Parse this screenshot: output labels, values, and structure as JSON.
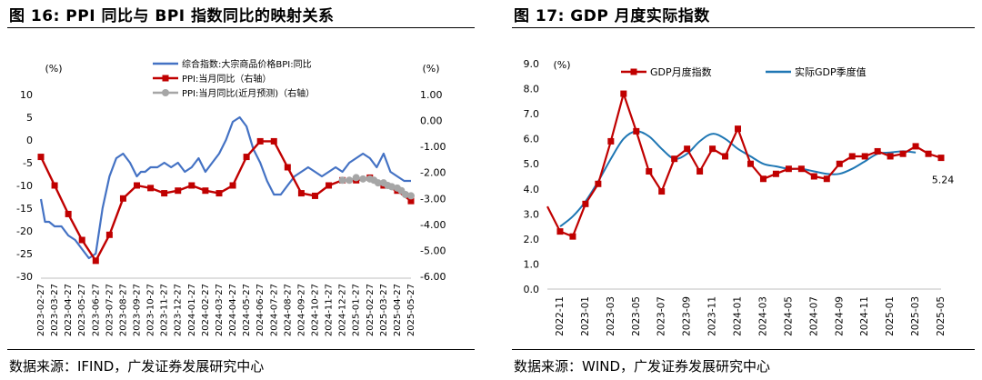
{
  "left": {
    "title": "图 16:  PPI 同比与 BPI 指数同比的映射关系",
    "source": "数据来源：IFIND，广发证券发展研究中心"
  },
  "right": {
    "title": "图 17:  GDP 月度实际指数",
    "source": "数据来源：WIND，广发证券发展研究中心"
  },
  "chart_data": [
    {
      "type": "line",
      "title": "",
      "ylabel": "(%)",
      "y2label": "(%)",
      "ylim": [
        -30,
        10
      ],
      "y2lim": [
        -6,
        1
      ],
      "yticks": [
        10,
        5,
        0,
        -5,
        -10,
        -15,
        -20,
        -25,
        -30
      ],
      "y2ticks": [
        "1.00",
        "0.00",
        "-1.00",
        "-2.00",
        "-3.00",
        "-4.00",
        "-5.00",
        "-6.00"
      ],
      "xlabels": [
        "2023-02-27",
        "2023-03-27",
        "2023-04-27",
        "2023-05-27",
        "2023-06-27",
        "2023-07-27",
        "2023-08-27",
        "2023-09-27",
        "2023-10-27",
        "2023-11-27",
        "2023-12-27",
        "2024-01-27",
        "2024-02-27",
        "2024-03-27",
        "2024-04-27",
        "2024-05-27",
        "2024-06-27",
        "2024-07-27",
        "2024-08-27",
        "2024-09-27",
        "2024-10-27",
        "2024-11-27",
        "2024-12-27",
        "2025-01-27",
        "2025-02-27",
        "2025-03-27",
        "2025-04-27",
        "2025-05-27"
      ],
      "grid": false,
      "legend_position": "top",
      "series": [
        {
          "name": "综合指数:大宗商品价格BPI:同比",
          "axis": "left",
          "color": "#4472c4",
          "x": [
            0,
            0.3,
            0.6,
            1,
            1.5,
            2,
            2.5,
            3,
            3.5,
            4,
            4.5,
            5,
            5.5,
            6,
            6.5,
            7,
            7.3,
            7.6,
            8,
            8.5,
            9,
            9.5,
            10,
            10.5,
            11,
            11.5,
            12,
            12.5,
            13,
            13.5,
            14,
            14.5,
            15,
            15.5,
            16,
            16.5,
            17,
            17.5,
            18,
            18.5,
            19,
            19.5,
            20,
            20.5,
            21,
            21.5,
            22,
            22.5,
            23,
            23.5,
            24,
            24.5,
            25,
            25.5,
            26,
            26.5,
            27
          ],
          "values": [
            -13,
            -18,
            -18,
            -19,
            -19,
            -21,
            -22,
            -24,
            -26,
            -25,
            -15,
            -8,
            -4,
            -3,
            -5,
            -8,
            -7,
            -7,
            -6,
            -6,
            -5,
            -6,
            -5,
            -7,
            -6,
            -4,
            -7,
            -5,
            -3,
            0,
            4,
            5,
            3,
            -2,
            -5,
            -9,
            -12,
            -12,
            -10,
            -8,
            -7,
            -6,
            -7,
            -8,
            -7,
            -6,
            -7,
            -5,
            -4,
            -3,
            -4,
            -6,
            -3,
            -7,
            -8,
            -9,
            -9
          ]
        },
        {
          "name": "PPI:当月同比（右轴）",
          "axis": "right",
          "color": "#c00000",
          "x": [
            0,
            1,
            2,
            3,
            4,
            5,
            6,
            7,
            8,
            9,
            10,
            11,
            12,
            13,
            14,
            15,
            16,
            17,
            18,
            19,
            20,
            21,
            22,
            23,
            24,
            25,
            26,
            27
          ],
          "values": [
            -1.4,
            -2.5,
            -3.6,
            -4.6,
            -5.4,
            -4.4,
            -3.0,
            -2.5,
            -2.6,
            -2.8,
            -2.7,
            -2.5,
            -2.7,
            -2.8,
            -2.5,
            -1.4,
            -0.8,
            -0.8,
            -1.8,
            -2.8,
            -2.9,
            -2.5,
            -2.3,
            -2.3,
            -2.2,
            -2.5,
            -2.7,
            -3.1
          ]
        },
        {
          "name": "PPI:当月同比(近月预测)（右轴）",
          "axis": "right",
          "color": "#a6a6a6",
          "x": [
            22,
            22.5,
            23,
            23.5,
            24,
            24.3,
            24.6,
            25,
            25.3,
            25.6,
            26,
            26.3,
            26.6,
            27
          ],
          "values": [
            -2.3,
            -2.3,
            -2.2,
            -2.25,
            -2.25,
            -2.3,
            -2.4,
            -2.4,
            -2.5,
            -2.55,
            -2.6,
            -2.7,
            -2.85,
            -2.9
          ]
        }
      ]
    },
    {
      "type": "line",
      "title": "",
      "ylabel": "(%)",
      "ylim": [
        0,
        9
      ],
      "yticks": [
        "9.0",
        "8.0",
        "7.0",
        "6.0",
        "5.0",
        "4.0",
        "3.0",
        "2.0",
        "1.0",
        "0.0"
      ],
      "xlabels": [
        "2022-11",
        "2023-01",
        "2023-03",
        "2023-05",
        "2023-07",
        "2023-09",
        "2023-11",
        "2024-01",
        "2024-03",
        "2024-05",
        "2024-07",
        "2024-09",
        "2024-11",
        "2025-01",
        "2025-03",
        "2025-05"
      ],
      "grid": false,
      "legend_position": "top",
      "annotation": "5.24",
      "series": [
        {
          "name": "GDP月度指数",
          "color": "#c00000",
          "x": [
            0,
            1,
            2,
            3,
            4,
            5,
            6,
            7,
            8,
            9,
            10,
            11,
            12,
            13,
            14,
            15,
            16,
            17,
            18,
            19,
            20,
            21,
            22,
            23,
            24,
            25,
            26,
            27,
            28,
            29,
            30,
            31
          ],
          "values": [
            3.3,
            2.3,
            2.1,
            3.4,
            4.2,
            5.9,
            7.8,
            6.3,
            4.7,
            3.9,
            5.2,
            5.6,
            4.7,
            5.6,
            5.3,
            6.4,
            5.0,
            4.4,
            4.6,
            4.8,
            4.8,
            4.5,
            4.4,
            5.0,
            5.3,
            5.3,
            5.5,
            5.3,
            5.4,
            5.7,
            5.4,
            5.24
          ]
        },
        {
          "name": "实际GDP季度值",
          "color": "#1f77b4",
          "x": [
            1,
            2,
            3,
            4,
            5,
            6,
            7,
            8,
            9,
            10,
            11,
            12,
            13,
            14,
            15,
            16,
            17,
            18,
            19,
            20,
            21,
            22,
            23,
            24,
            25,
            26,
            27,
            28,
            29
          ],
          "values": [
            2.5,
            2.9,
            3.5,
            4.3,
            5.2,
            6.0,
            6.3,
            6.1,
            5.6,
            5.2,
            5.4,
            5.9,
            6.2,
            6.0,
            5.6,
            5.3,
            5.0,
            4.9,
            4.8,
            4.8,
            4.7,
            4.6,
            4.6,
            4.8,
            5.1,
            5.4,
            5.45,
            5.5,
            5.45
          ]
        }
      ]
    }
  ]
}
